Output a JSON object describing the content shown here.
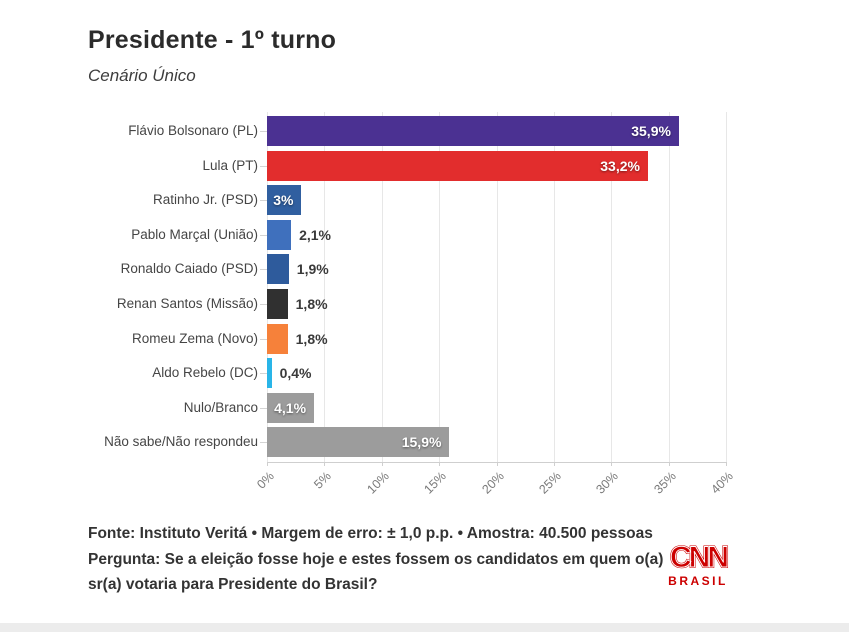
{
  "header": {
    "title": "Presidente - 1º turno",
    "subtitle": "Cenário Único"
  },
  "chart_data": {
    "type": "bar",
    "orientation": "horizontal",
    "title": "Presidente - 1º turno",
    "subtitle": "Cenário Único",
    "categories": [
      "Flávio Bolsonaro (PL)",
      "Lula (PT)",
      "Ratinho Jr. (PSD)",
      "Pablo Marçal (União)",
      "Ronaldo Caiado (PSD)",
      "Renan Santos (Missão)",
      "Romeu Zema (Novo)",
      "Aldo Rebelo (DC)",
      "Nulo/Branco",
      "Não sabe/Não respondeu"
    ],
    "values": [
      35.9,
      33.2,
      3,
      2.1,
      1.9,
      1.8,
      1.8,
      0.4,
      4.1,
      15.9
    ],
    "value_labels": [
      "35,9%",
      "33,2%",
      "3%",
      "2,1%",
      "1,9%",
      "1,8%",
      "1,8%",
      "0,4%",
      "4,1%",
      "15,9%"
    ],
    "bar_colors": [
      "#4B3192",
      "#E22D2D",
      "#305FA0",
      "#3F70BD",
      "#2E5B9C",
      "#303030",
      "#F6813A",
      "#29B5E8",
      "#9C9C9C",
      "#9C9C9C"
    ],
    "label_inside": [
      true,
      true,
      true,
      false,
      false,
      false,
      false,
      false,
      true,
      true
    ],
    "x_ticks": [
      "0%",
      "5%",
      "10%",
      "15%",
      "20%",
      "25%",
      "30%",
      "35%",
      "40%"
    ],
    "x_tick_values": [
      0,
      5,
      10,
      15,
      20,
      25,
      30,
      35,
      40
    ],
    "xlim": [
      0,
      40
    ],
    "grid": true,
    "legend": "none",
    "xlabel": "",
    "ylabel": ""
  },
  "footer": {
    "source": "Fonte: Instituto Veritá • Margem de erro: ± 1,0 p.p. • Amostra: 40.500 pessoas",
    "question": "Pergunta: Se a eleição fosse hoje e estes fossem os candidatos em quem o(a) sr(a) votaria para Presidente do Brasil?"
  },
  "logo": {
    "text": "CNN",
    "sub": "BRASIL",
    "color": "#CC0000"
  }
}
